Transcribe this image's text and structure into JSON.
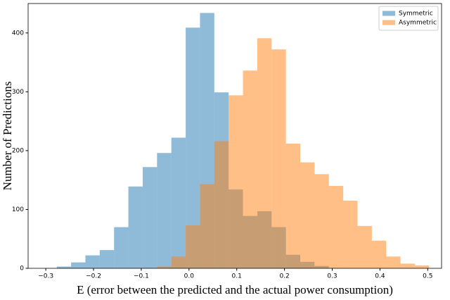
{
  "chart_data": {
    "type": "histogram",
    "xlabel": "E (error between the predicted and the actual power consumption)",
    "ylabel": "Number of Predictions",
    "series": [
      {
        "name": "Symmetric",
        "color": "#1f77b4",
        "bins": [
          -0.277,
          -0.247,
          -0.217,
          -0.187,
          -0.157,
          -0.127,
          -0.097,
          -0.067,
          -0.037,
          -0.007,
          0.023,
          0.053,
          0.083,
          0.113,
          0.143,
          0.173,
          0.203,
          0.233,
          0.263,
          0.293
        ],
        "values": [
          3,
          10,
          22,
          31,
          70,
          139,
          172,
          196,
          222,
          409,
          434,
          299,
          134,
          89,
          97,
          70,
          23,
          11,
          4
        ]
      },
      {
        "name": "Asymmetric",
        "color": "#ff7f0e",
        "bins": [
          -0.067,
          -0.037,
          -0.007,
          0.023,
          0.053,
          0.083,
          0.113,
          0.143,
          0.173,
          0.203,
          0.233,
          0.263,
          0.293,
          0.323,
          0.353,
          0.383,
          0.413,
          0.443,
          0.473,
          0.503
        ],
        "values": [
          3,
          20,
          73,
          143,
          216,
          294,
          336,
          391,
          372,
          212,
          180,
          160,
          140,
          115,
          72,
          47,
          20,
          8,
          5
        ]
      }
    ],
    "opacity": 0.5,
    "xlim": [
      -0.337,
      0.529
    ],
    "ylim": [
      0,
      450
    ],
    "xticks": [
      {
        "value": -0.3,
        "label": "−0.3"
      },
      {
        "value": -0.2,
        "label": "−0.2"
      },
      {
        "value": -0.1,
        "label": "−0.1"
      },
      {
        "value": 0,
        "label": "0.0"
      },
      0.1,
      0.2,
      0.3,
      0.4,
      0.5
    ],
    "yticks": [
      0,
      100,
      200,
      300,
      400
    ],
    "legend": "upper right"
  }
}
